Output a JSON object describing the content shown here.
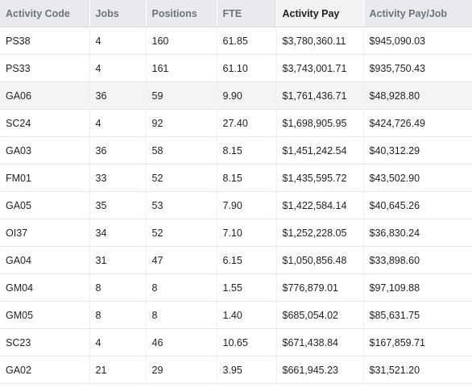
{
  "table": {
    "headers": [
      "Activity Code",
      "Jobs",
      "Positions",
      "FTE",
      "Activity Pay",
      "Activity Pay/Job"
    ],
    "sorted_column": "Activity Pay",
    "highlighted_row": 2,
    "rows": [
      [
        "PS38",
        "4",
        "160",
        "61.85",
        "$3,780,360.11",
        "$945,090.03"
      ],
      [
        "PS33",
        "4",
        "161",
        "61.10",
        "$3,743,001.71",
        "$935,750.43"
      ],
      [
        "GA06",
        "36",
        "59",
        "9.90",
        "$1,761,436.71",
        "$48,928.80"
      ],
      [
        "SC24",
        "4",
        "92",
        "27.40",
        "$1,698,905.95",
        "$424,726.49"
      ],
      [
        "GA03",
        "36",
        "58",
        "8.15",
        "$1,451,242.54",
        "$40,312.29"
      ],
      [
        "FM01",
        "33",
        "52",
        "8.15",
        "$1,435,595.72",
        "$43,502.90"
      ],
      [
        "GA05",
        "35",
        "53",
        "7.90",
        "$1,422,584.14",
        "$40,645.26"
      ],
      [
        "OI37",
        "34",
        "52",
        "7.10",
        "$1,252,228.05",
        "$36,830.24"
      ],
      [
        "GA04",
        "31",
        "47",
        "6.15",
        "$1,050,856.48",
        "$33,898.60"
      ],
      [
        "GM04",
        "8",
        "8",
        "1.55",
        "$776,879.01",
        "$97,109.88"
      ],
      [
        "GM05",
        "8",
        "8",
        "1.40",
        "$685,054.02",
        "$85,631.75"
      ],
      [
        "SC23",
        "4",
        "46",
        "10.65",
        "$671,438.84",
        "$167,859.71"
      ],
      [
        "GA02",
        "21",
        "29",
        "3.95",
        "$661,945.23",
        "$31,521.20"
      ]
    ]
  }
}
